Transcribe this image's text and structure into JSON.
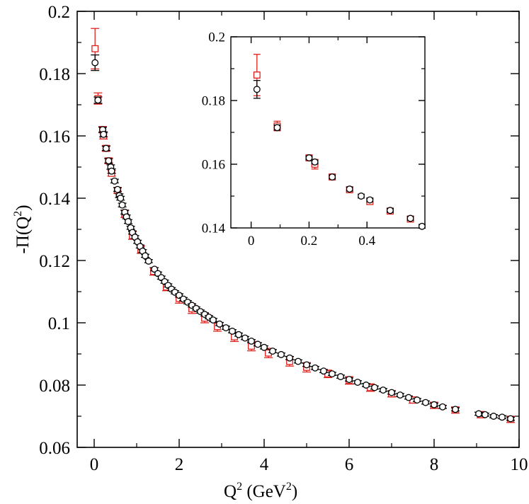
{
  "chart_data": [
    {
      "type": "scatter",
      "title": "",
      "xlabel": "Q^2 (GeV^2)",
      "ylabel": "-Π(Q^2)",
      "xlim": [
        -0.4,
        10
      ],
      "ylim": [
        0.06,
        0.2
      ],
      "x_ticks": [
        0,
        2,
        4,
        6,
        8,
        10
      ],
      "y_ticks": [
        0.06,
        0.08,
        0.1,
        0.12,
        0.14,
        0.16,
        0.18,
        0.2
      ],
      "grid": false,
      "colors": {
        "series_a": "#000000",
        "series_b": "#e0211d"
      },
      "series": [
        {
          "marker": "circle",
          "color": "#000000",
          "points": [
            [
              0.02,
              0.1835,
              0.0025
            ],
            [
              0.09,
              0.1715,
              0.001
            ],
            [
              0.2,
              0.162,
              0.0008
            ],
            [
              0.22,
              0.1605,
              0.0008
            ],
            [
              0.28,
              0.156,
              0.0007
            ],
            [
              0.34,
              0.152,
              0.0007
            ],
            [
              0.39,
              0.15,
              0.0007
            ],
            [
              0.41,
              0.1487,
              0.0007
            ],
            [
              0.48,
              0.1455,
              0.0006
            ],
            [
              0.55,
              0.1428,
              0.0006
            ],
            [
              0.59,
              0.1408,
              0.0006
            ],
            [
              0.62,
              0.14,
              0.0006
            ],
            [
              0.66,
              0.1378,
              0.0006
            ],
            [
              0.72,
              0.1355,
              0.0006
            ],
            [
              0.76,
              0.134,
              0.0006
            ],
            [
              0.8,
              0.1325,
              0.0006
            ],
            [
              0.86,
              0.1305,
              0.0005
            ],
            [
              0.9,
              0.129,
              0.0005
            ],
            [
              0.96,
              0.1275,
              0.0005
            ],
            [
              1.02,
              0.126,
              0.0005
            ],
            [
              1.08,
              0.1245,
              0.0005
            ],
            [
              1.14,
              0.123,
              0.0005
            ],
            [
              1.2,
              0.1215,
              0.0005
            ],
            [
              1.28,
              0.1198,
              0.0005
            ],
            [
              1.42,
              0.1172,
              0.0005
            ],
            [
              1.5,
              0.1158,
              0.0005
            ],
            [
              1.58,
              0.1145,
              0.0005
            ],
            [
              1.66,
              0.1132,
              0.0005
            ],
            [
              1.74,
              0.112,
              0.0005
            ],
            [
              1.82,
              0.1108,
              0.0005
            ],
            [
              1.9,
              0.1098,
              0.0005
            ],
            [
              2.0,
              0.1088,
              0.0005
            ],
            [
              2.1,
              0.1076,
              0.0005
            ],
            [
              2.2,
              0.1066,
              0.0005
            ],
            [
              2.3,
              0.1056,
              0.0005
            ],
            [
              2.4,
              0.1046,
              0.0005
            ],
            [
              2.5,
              0.1036,
              0.0005
            ],
            [
              2.6,
              0.1027,
              0.0005
            ],
            [
              2.7,
              0.1018,
              0.0005
            ],
            [
              2.8,
              0.1009,
              0.0005
            ],
            [
              2.95,
              0.0996,
              0.0005
            ],
            [
              3.1,
              0.0984,
              0.0005
            ],
            [
              3.25,
              0.0973,
              0.0005
            ],
            [
              3.4,
              0.0962,
              0.0005
            ],
            [
              3.55,
              0.0951,
              0.0005
            ],
            [
              3.7,
              0.0941,
              0.0005
            ],
            [
              3.85,
              0.0931,
              0.0005
            ],
            [
              4.0,
              0.0921,
              0.0005
            ],
            [
              4.2,
              0.0909,
              0.0005
            ],
            [
              4.4,
              0.0898,
              0.0005
            ],
            [
              4.6,
              0.0887,
              0.0005
            ],
            [
              4.8,
              0.0876,
              0.0005
            ],
            [
              5.0,
              0.0865,
              0.0005
            ],
            [
              5.2,
              0.0855,
              0.0005
            ],
            [
              5.4,
              0.0845,
              0.0005
            ],
            [
              5.6,
              0.0836,
              0.0005
            ],
            [
              5.8,
              0.0827,
              0.0005
            ],
            [
              6.0,
              0.0818,
              0.0005
            ],
            [
              6.2,
              0.0809,
              0.0005
            ],
            [
              6.4,
              0.08,
              0.0005
            ],
            [
              6.6,
              0.0792,
              0.0005
            ],
            [
              6.8,
              0.0784,
              0.0005
            ],
            [
              7.0,
              0.0776,
              0.0005
            ],
            [
              7.2,
              0.0768,
              0.0005
            ],
            [
              7.4,
              0.076,
              0.0005
            ],
            [
              7.6,
              0.0752,
              0.0005
            ],
            [
              7.8,
              0.0744,
              0.0005
            ],
            [
              8.0,
              0.0737,
              0.0005
            ],
            [
              8.2,
              0.073,
              0.0005
            ],
            [
              8.5,
              0.0722,
              0.0005
            ],
            [
              9.05,
              0.0708,
              0.0005
            ],
            [
              9.2,
              0.0705,
              0.0005
            ],
            [
              9.4,
              0.07,
              0.0005
            ],
            [
              9.6,
              0.0697,
              0.0005
            ],
            [
              9.8,
              0.0692,
              0.0005
            ]
          ]
        },
        {
          "marker": "square",
          "color": "#e0211d",
          "points": [
            [
              0.02,
              0.188,
              0.0065
            ],
            [
              0.09,
              0.172,
              0.0018
            ],
            [
              0.2,
              0.162,
              0.001
            ],
            [
              0.22,
              0.16,
              0.001
            ],
            [
              0.28,
              0.156,
              0.0009
            ],
            [
              0.34,
              0.152,
              0.0009
            ],
            [
              0.41,
              0.148,
              0.0009
            ],
            [
              0.55,
              0.1425,
              0.0009
            ],
            [
              0.72,
              0.135,
              0.0012
            ],
            [
              0.9,
              0.128,
              0.0012
            ],
            [
              1.1,
              0.1235,
              0.0012
            ],
            [
              1.4,
              0.1165,
              0.0012
            ],
            [
              1.7,
              0.1115,
              0.0012
            ],
            [
              2.0,
              0.1078,
              0.0015
            ],
            [
              2.3,
              0.1045,
              0.0015
            ],
            [
              2.6,
              0.1015,
              0.0015
            ],
            [
              2.9,
              0.0988,
              0.0015
            ],
            [
              3.3,
              0.0955,
              0.0015
            ],
            [
              3.7,
              0.0925,
              0.0015
            ],
            [
              4.1,
              0.0903,
              0.0015
            ],
            [
              4.6,
              0.0876,
              0.0015
            ],
            [
              5.0,
              0.0857,
              0.0015
            ],
            [
              5.5,
              0.0836,
              0.0012
            ],
            [
              6.0,
              0.0815,
              0.0012
            ],
            [
              6.5,
              0.0792,
              0.0012
            ],
            [
              7.0,
              0.0772,
              0.001
            ],
            [
              7.5,
              0.0752,
              0.001
            ],
            [
              8.0,
              0.0735,
              0.001
            ],
            [
              8.5,
              0.072,
              0.001
            ],
            [
              9.1,
              0.0705,
              0.001
            ],
            [
              9.8,
              0.069,
              0.001
            ]
          ]
        }
      ]
    },
    {
      "type": "scatter",
      "title": "",
      "xlim": [
        -0.07,
        0.6
      ],
      "ylim": [
        0.14,
        0.2
      ],
      "x_ticks": [
        0,
        0.2,
        0.4
      ],
      "y_ticks": [
        0.14,
        0.16,
        0.18,
        0.2
      ],
      "grid": false,
      "series": [
        {
          "marker": "circle",
          "color": "#000000",
          "points": [
            [
              0.02,
              0.1835,
              0.0028
            ],
            [
              0.09,
              0.1715,
              0.0008
            ],
            [
              0.2,
              0.162,
              0.0006
            ],
            [
              0.22,
              0.1607,
              0.0006
            ],
            [
              0.28,
              0.156,
              0.0006
            ],
            [
              0.34,
              0.1522,
              0.0006
            ],
            [
              0.38,
              0.15,
              0.0006
            ],
            [
              0.41,
              0.1488,
              0.0006
            ],
            [
              0.48,
              0.1455,
              0.0006
            ],
            [
              0.55,
              0.143,
              0.0006
            ],
            [
              0.59,
              0.1405,
              0.0006
            ]
          ]
        },
        {
          "marker": "square",
          "color": "#e0211d",
          "points": [
            [
              0.02,
              0.188,
              0.0065
            ],
            [
              0.09,
              0.172,
              0.0015
            ],
            [
              0.2,
              0.162,
              0.0008
            ],
            [
              0.22,
              0.16,
              0.0015
            ],
            [
              0.28,
              0.156,
              0.0008
            ],
            [
              0.34,
              0.152,
              0.0008
            ],
            [
              0.41,
              0.1483,
              0.0008
            ],
            [
              0.48,
              0.1453,
              0.0008
            ],
            [
              0.55,
              0.1428,
              0.0008
            ]
          ]
        }
      ]
    }
  ]
}
